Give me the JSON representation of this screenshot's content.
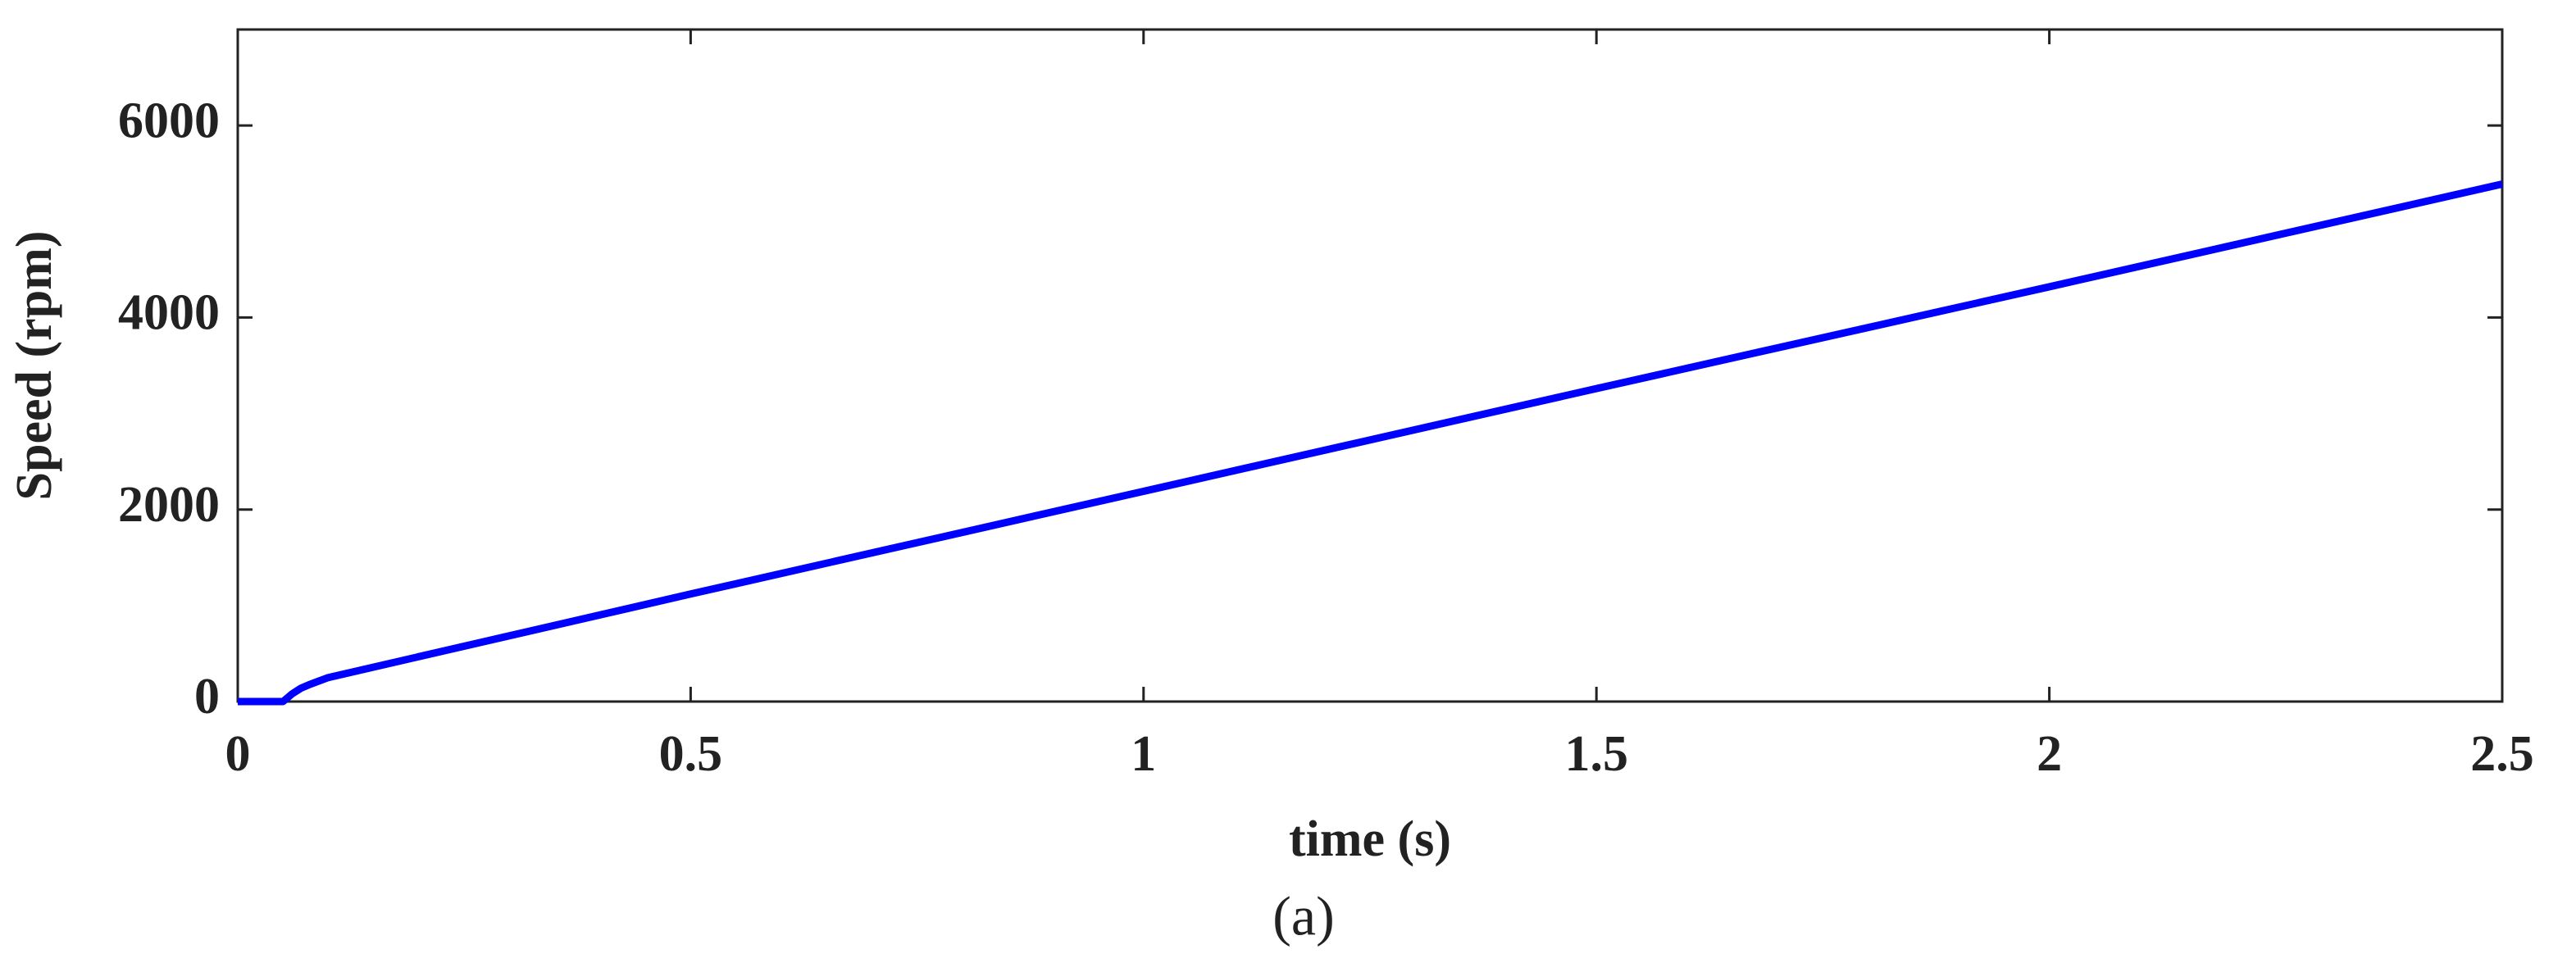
{
  "chart_data": {
    "type": "line",
    "x_label": "time (s)",
    "y_label": "Speed (rpm)",
    "caption": "(a)",
    "x": [
      0,
      0.05,
      0.06,
      0.07,
      0.08,
      0.1,
      0.5,
      1,
      1.5,
      2,
      2.5
    ],
    "series": [
      {
        "color": "#0000ff",
        "values": [
          0,
          0,
          80,
          140,
          180,
          250,
          1120,
          2190,
          3260,
          4320,
          5390
        ]
      }
    ],
    "xlim": [
      0,
      2.5
    ],
    "ylim": [
      0,
      7000
    ],
    "xticks": [
      0,
      0.5,
      1,
      1.5,
      2,
      2.5
    ],
    "yticks": [
      0,
      2000,
      4000,
      6000
    ],
    "grid": false
  }
}
